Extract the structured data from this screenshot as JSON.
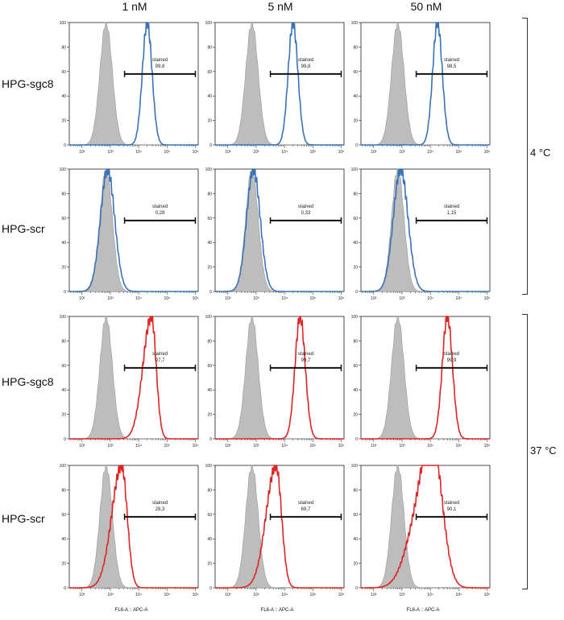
{
  "columns": [
    "1 nM",
    "5 nM",
    "50 nM"
  ],
  "rows": [
    "HPG-sgc8",
    "HPG-scr",
    "HPG-sgc8",
    "HPG-scr"
  ],
  "temperatures": [
    "4 °C",
    "37 °C"
  ],
  "xaxis_label": "FL6-A :: APC-A",
  "colors": {
    "control": "#bdbdbd",
    "blue": "#3a72b8",
    "red": "#e02323"
  },
  "chart_data": {
    "type": "histogram-grid",
    "y_ticks": [
      "0",
      "20",
      "40",
      "60",
      "80",
      "100"
    ],
    "x_ticks": [
      "10²",
      "10³",
      "10⁴",
      "10⁵",
      "10⁶"
    ],
    "ylim": [
      0,
      100
    ],
    "gate_label": "stained",
    "panels": [
      {
        "row": 0,
        "col": 0,
        "series_color": "blue",
        "control_peak_log": 2.85,
        "peak_log": 4.3,
        "width": 0.17,
        "spread": "narrow",
        "gate_value": "99,8"
      },
      {
        "row": 0,
        "col": 1,
        "series_color": "blue",
        "control_peak_log": 2.85,
        "peak_log": 4.3,
        "width": 0.17,
        "spread": "narrow",
        "gate_value": "99,8"
      },
      {
        "row": 0,
        "col": 2,
        "series_color": "blue",
        "control_peak_log": 2.85,
        "peak_log": 4.25,
        "width": 0.17,
        "spread": "narrow",
        "gate_value": "98,5"
      },
      {
        "row": 1,
        "col": 0,
        "series_color": "blue",
        "control_peak_log": 2.85,
        "peak_log": 2.9,
        "width": 0.25,
        "spread": "narrow",
        "gate_value": "0,28"
      },
      {
        "row": 1,
        "col": 1,
        "series_color": "blue",
        "control_peak_log": 2.85,
        "peak_log": 2.9,
        "width": 0.24,
        "spread": "narrow",
        "gate_value": "0,33"
      },
      {
        "row": 1,
        "col": 2,
        "series_color": "blue",
        "control_peak_log": 2.85,
        "peak_log": 2.95,
        "width": 0.26,
        "spread": "narrow",
        "gate_value": "1,15"
      },
      {
        "row": 2,
        "col": 0,
        "series_color": "red",
        "control_peak_log": 2.85,
        "peak_log": 4.45,
        "width": 0.3,
        "spread": "wide",
        "gate_value": "97,7"
      },
      {
        "row": 2,
        "col": 1,
        "series_color": "red",
        "control_peak_log": 2.85,
        "peak_log": 4.55,
        "width": 0.18,
        "spread": "narrow",
        "gate_value": "99,7"
      },
      {
        "row": 2,
        "col": 2,
        "series_color": "red",
        "control_peak_log": 2.85,
        "peak_log": 4.6,
        "width": 0.18,
        "spread": "narrow",
        "gate_value": "99,9"
      },
      {
        "row": 3,
        "col": 0,
        "series_color": "red",
        "control_peak_log": 2.85,
        "peak_log": 3.4,
        "width": 0.35,
        "spread": "wide",
        "gate_value": "28,3"
      },
      {
        "row": 3,
        "col": 1,
        "series_color": "red",
        "control_peak_log": 2.85,
        "peak_log": 3.7,
        "width": 0.35,
        "spread": "wide",
        "gate_value": "69,7"
      },
      {
        "row": 3,
        "col": 2,
        "series_color": "red",
        "control_peak_log": 2.85,
        "peak_log": 4.1,
        "width": 0.45,
        "spread": "broad",
        "gate_value": "90,1"
      }
    ]
  }
}
